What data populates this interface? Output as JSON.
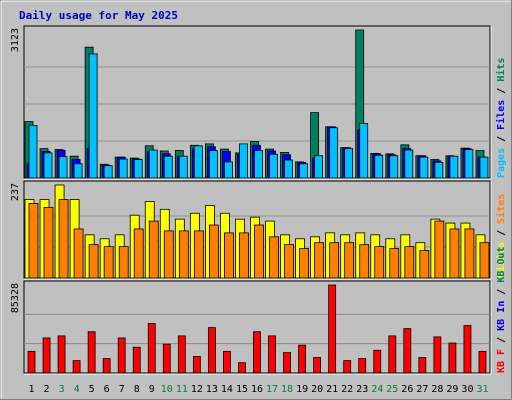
{
  "chart_data": {
    "type": "bar",
    "title": "Daily usage for May 2025",
    "categories": [
      "1",
      "2",
      "3",
      "4",
      "5",
      "6",
      "7",
      "8",
      "9",
      "10",
      "11",
      "12",
      "13",
      "14",
      "15",
      "16",
      "17",
      "18",
      "19",
      "20",
      "21",
      "22",
      "23",
      "24",
      "25",
      "26",
      "27",
      "28",
      "29",
      "30",
      "31"
    ],
    "weekend_days": [
      3,
      4,
      10,
      11,
      17,
      18,
      24,
      25,
      31
    ],
    "weekend_color": "#008040",
    "weekday_color": "#000000",
    "panels": [
      {
        "id": "pages-files-hits",
        "max_label": "3123",
        "ylim": [
          0,
          3123
        ],
        "legend": [
          {
            "text": "Pages",
            "color": "#00c0ff"
          },
          {
            "text": "/",
            "color": "#000000"
          },
          {
            "text": "Files",
            "color": "#0000ff"
          },
          {
            "text": "/",
            "color": "#000000"
          },
          {
            "text": "Hits",
            "color": "#008060"
          }
        ],
        "series": [
          {
            "name": "Hits",
            "color": "#008060",
            "values": [
              1190,
              620,
              600,
              460,
              2760,
              290,
              440,
              420,
              680,
              570,
              580,
              690,
              720,
              610,
              530,
              770,
              610,
              540,
              340,
              1380,
              1080,
              640,
              3123,
              520,
              510,
              700,
              470,
              390,
              470,
              630,
              580
            ]
          },
          {
            "name": "Files",
            "color": "#0000ff",
            "values": [
              300,
              560,
              580,
              390,
              620,
              270,
              440,
              400,
              550,
              510,
              460,
              620,
              660,
              560,
              500,
              690,
              570,
              490,
              330,
              420,
              1080,
              640,
              1010,
              510,
              490,
              620,
              470,
              360,
              450,
              620,
              440
            ]
          },
          {
            "name": "Pages",
            "color": "#00c0ff",
            "values": [
              1110,
              530,
              450,
              300,
              2620,
              260,
              400,
              390,
              590,
              460,
              460,
              680,
              580,
              340,
              720,
              580,
              500,
              380,
              300,
              470,
              1060,
              620,
              1150,
              480,
              470,
              590,
              440,
              330,
              460,
              600,
              440
            ]
          }
        ]
      },
      {
        "id": "visits-sites",
        "max_label": "237",
        "ylim": [
          0,
          237
        ],
        "legend": [
          {
            "text": "Visits",
            "color": "#ffff00"
          },
          {
            "text": "/",
            "color": "#000000"
          },
          {
            "text": "Sites",
            "color": "#ff8000"
          }
        ],
        "series": [
          {
            "name": "Visits",
            "color": "#ffff00",
            "values": [
              200,
              200,
              237,
              200,
              110,
              100,
              110,
              160,
              195,
              175,
              150,
              165,
              185,
              165,
              150,
              155,
              145,
              110,
              100,
              105,
              115,
              110,
              115,
              110,
              100,
              110,
              90,
              150,
              140,
              140,
              110
            ]
          },
          {
            "name": "Sites",
            "color": "#ff8000",
            "values": [
              190,
              180,
              200,
              125,
              85,
              80,
              80,
              125,
              145,
              120,
              120,
              120,
              135,
              115,
              115,
              135,
              105,
              85,
              75,
              90,
              90,
              90,
              85,
              80,
              75,
              80,
              70,
              145,
              125,
              125,
              90
            ]
          }
        ]
      },
      {
        "id": "kbf-kbin-kbout",
        "max_label": "85328",
        "ylim": [
          0,
          85328
        ],
        "legend": [
          {
            "text": "KB F",
            "color": "#ff0000"
          },
          {
            "text": "/",
            "color": "#000000"
          },
          {
            "text": "KB In",
            "color": "#0000ff"
          },
          {
            "text": "/",
            "color": "#000000"
          },
          {
            "text": "KB Out",
            "color": "#008060"
          }
        ],
        "series": [
          {
            "name": "KB F",
            "color": "#ff0000",
            "values": [
              21000,
              34000,
              36000,
              12000,
              40000,
              14000,
              34000,
              25000,
              48000,
              28000,
              36000,
              16000,
              44000,
              21000,
              10000,
              40000,
              36000,
              20000,
              27000,
              15000,
              85328,
              12000,
              14000,
              22000,
              36000,
              43000,
              15000,
              35000,
              29000,
              46000,
              21000
            ]
          }
        ]
      }
    ]
  }
}
